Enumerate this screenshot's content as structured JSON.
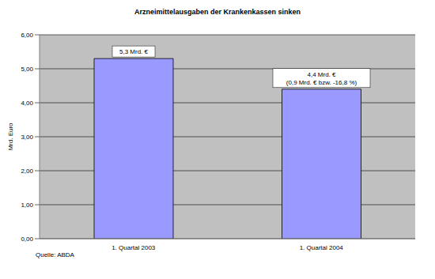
{
  "chart_data": {
    "type": "bar",
    "title": "Arzneimittelausgaben der Krankenkassen sinken",
    "y_label": "Mrd. Euro",
    "source": "Quelle: ABDA",
    "categories": [
      "1. Quartal 2003",
      "1. Quartal 2004"
    ],
    "values": [
      5.3,
      4.4
    ],
    "value_labels": [
      "5,3 Mrd. €",
      "4,4 Mrd. €"
    ],
    "annotations": [
      {
        "category": "1. Quartal 2004",
        "text": "(0,9 Mrd. € bzw. -16,8 %)"
      }
    ],
    "color": "#9999ff",
    "ylim": [
      0,
      6
    ],
    "yticks": [
      {
        "value": 0,
        "label": "0,00"
      },
      {
        "value": 1,
        "label": "1,00"
      },
      {
        "value": 2,
        "label": "2,00"
      },
      {
        "value": 3,
        "label": "3,00"
      },
      {
        "value": 4,
        "label": "4,00"
      },
      {
        "value": 5,
        "label": "5,00"
      },
      {
        "value": 6,
        "label": "6,00"
      }
    ],
    "grid": true,
    "data_labels": true
  }
}
